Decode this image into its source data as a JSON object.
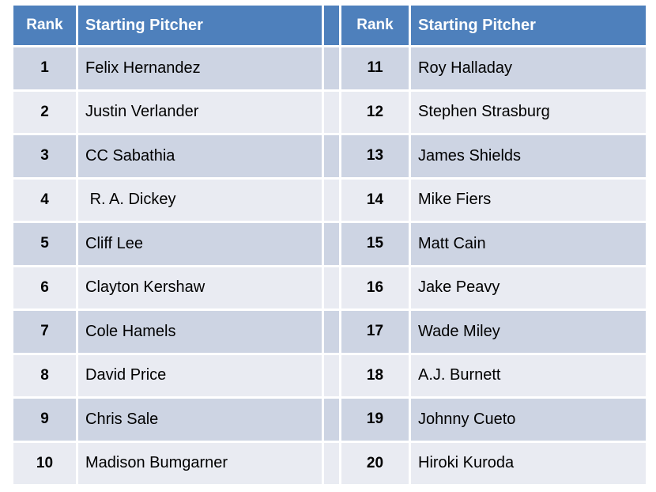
{
  "colors": {
    "page_bg": "#ffffff",
    "header_bg": "#4e80bc",
    "header_text": "#ffffff",
    "row_dark": "#cdd4e3",
    "row_light": "#e9ebf2",
    "body_text": "#000000"
  },
  "chart_data": {
    "type": "table",
    "title": "Top 20 Starting Pitchers ranking table (two side-by-side panels)",
    "columns": [
      "Rank",
      "Starting Pitcher",
      "Rank",
      "Starting Pitcher"
    ],
    "rows": [
      [
        "1",
        "Felix Hernandez",
        "11",
        "Roy Halladay"
      ],
      [
        "2",
        "Justin Verlander",
        "12",
        "Stephen Strasburg"
      ],
      [
        "3",
        "CC Sabathia",
        "13",
        "James Shields"
      ],
      [
        "4",
        " R. A. Dickey",
        "14",
        "Mike Fiers"
      ],
      [
        "5",
        "Cliff Lee",
        "15",
        "Matt Cain"
      ],
      [
        "6",
        "Clayton Kershaw",
        "16",
        "Jake Peavy"
      ],
      [
        "7",
        "Cole Hamels",
        "17",
        "Wade Miley"
      ],
      [
        "8",
        "David Price",
        "18",
        "A.J. Burnett"
      ],
      [
        "9",
        "Chris Sale",
        "19",
        "Johnny Cueto"
      ],
      [
        "10",
        "Madison Bumgarner",
        "20",
        "Hiroki Kuroda"
      ]
    ],
    "layout_hints": {
      "banding": "odd rows dark, even rows light",
      "header_style": "steel blue with white bold text",
      "spacer_column_between_panels": true
    }
  }
}
